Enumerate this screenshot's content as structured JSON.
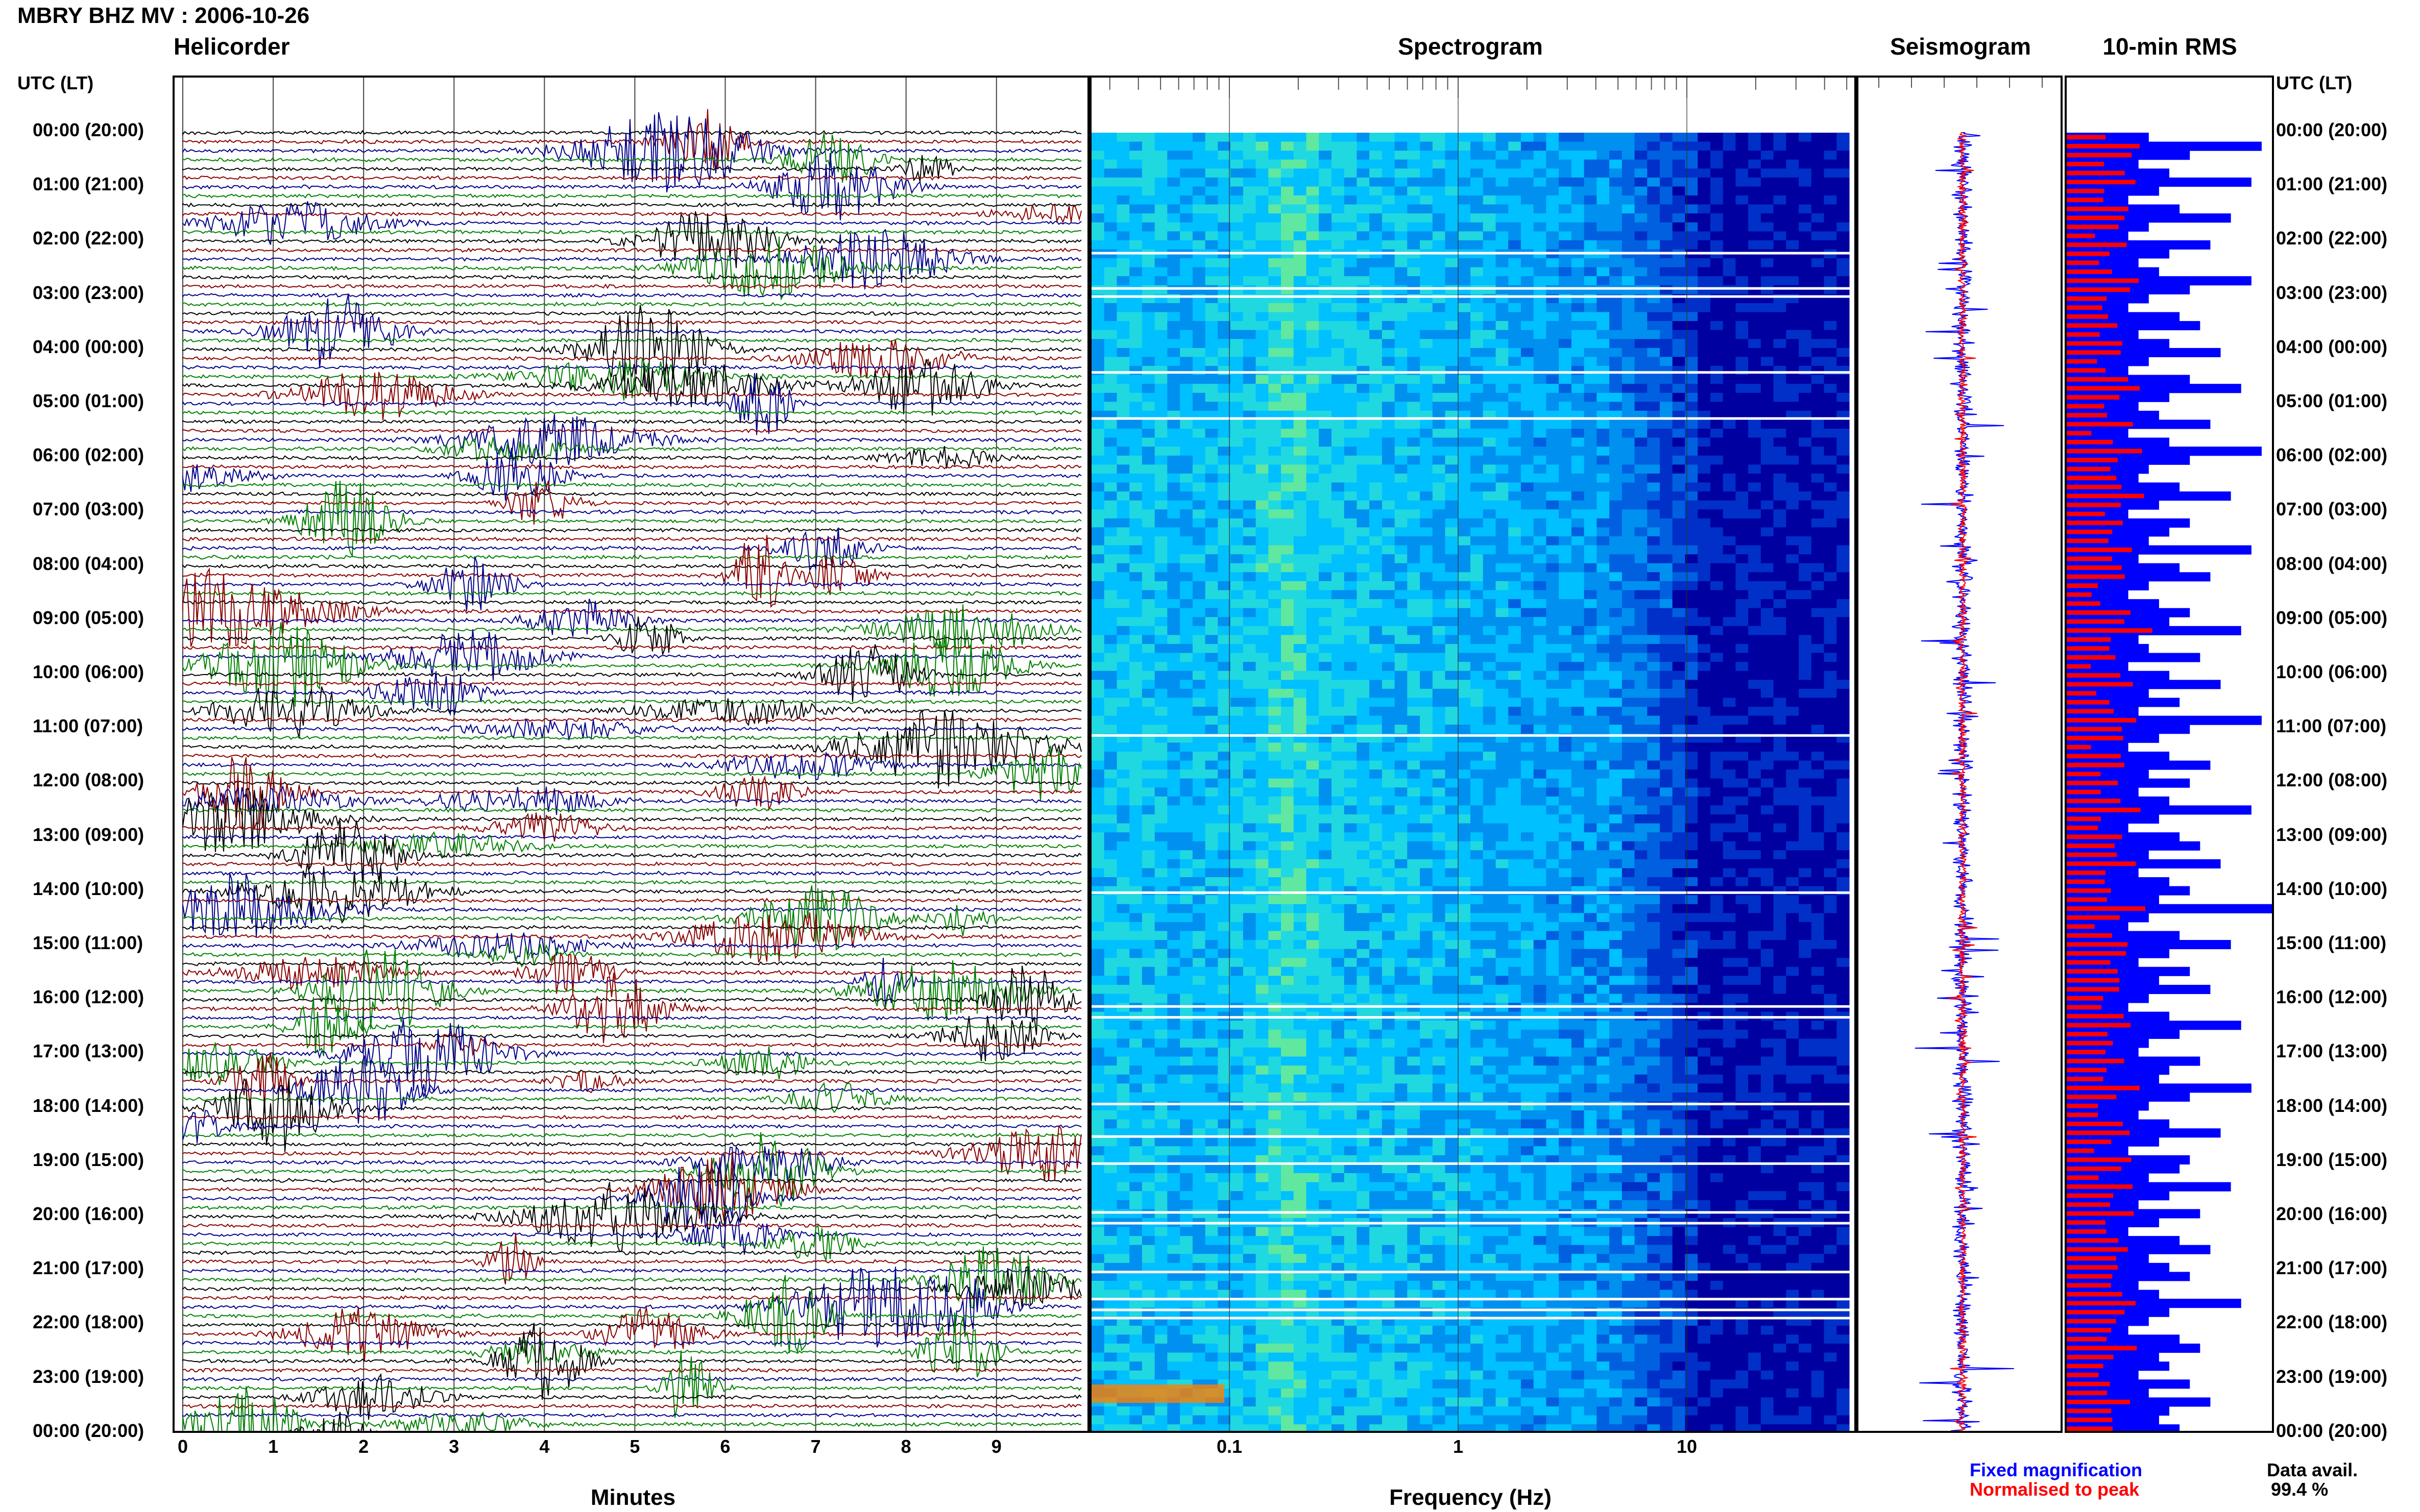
{
  "station_header": "MBRY BHZ MV : 2006-10-26",
  "panels": {
    "helicorder": "Helicorder",
    "spectrogram": "Spectrogram",
    "seismogram": "Seismogram",
    "rms": "10-min RMS"
  },
  "time_axis_title": "UTC (LT)",
  "time_labels": [
    "00:00 (20:00)",
    "01:00 (21:00)",
    "02:00 (22:00)",
    "03:00 (23:00)",
    "04:00 (00:00)",
    "05:00 (01:00)",
    "06:00 (02:00)",
    "07:00 (03:00)",
    "08:00 (04:00)",
    "09:00 (05:00)",
    "10:00 (06:00)",
    "11:00 (07:00)",
    "12:00 (08:00)",
    "13:00 (09:00)",
    "14:00 (10:00)",
    "15:00 (11:00)",
    "16:00 (12:00)",
    "17:00 (13:00)",
    "18:00 (14:00)",
    "19:00 (15:00)",
    "20:00 (16:00)",
    "21:00 (17:00)",
    "22:00 (18:00)",
    "23:00 (19:00)",
    "00:00 (20:00)"
  ],
  "helicorder_axis": {
    "label": "Minutes",
    "ticks": [
      "0",
      "1",
      "2",
      "3",
      "4",
      "5",
      "6",
      "7",
      "8",
      "9"
    ]
  },
  "spectrogram_axis": {
    "label": "Frequency (Hz)",
    "ticks": [
      "0.1",
      "1",
      "10"
    ]
  },
  "legend": {
    "fixed": "Fixed magnification",
    "normalised": "Normalised to peak",
    "fixed_color": "#0000ff",
    "normalised_color": "#ff0000"
  },
  "data_avail": {
    "label": "Data avail.",
    "value": "99.4 %"
  },
  "colors": {
    "trace_black": "#000000",
    "trace_red": "#8b0000",
    "trace_blue": "#00008b",
    "trace_green": "#008000",
    "spec_low": "#00008b",
    "spec_mid": "#00bfff",
    "spec_high": "#ffff00"
  },
  "chart_data": {
    "type": "area",
    "x_unit": "hour UTC",
    "rows": 145,
    "rms_fixed_relative": [
      0.4,
      0.95,
      0.6,
      0.35,
      0.5,
      0.9,
      0.45,
      0.3,
      0.55,
      0.8,
      0.4,
      0.3,
      0.7,
      0.5,
      0.35,
      0.45,
      0.9,
      0.6,
      0.4,
      0.3,
      0.55,
      0.65,
      0.35,
      0.5,
      0.75,
      0.4,
      0.3,
      0.6,
      0.85,
      0.5,
      0.35,
      0.45,
      0.7,
      0.3,
      0.5,
      0.95,
      0.6,
      0.4,
      0.35,
      0.55,
      0.8,
      0.45,
      0.3,
      0.6,
      0.5,
      0.4,
      0.9,
      0.35,
      0.55,
      0.7,
      0.4,
      0.3,
      0.45,
      0.6,
      0.5,
      0.85,
      0.35,
      0.4,
      0.65,
      0.3,
      0.5,
      0.75,
      0.4,
      0.55,
      0.35,
      0.95,
      0.6,
      0.45,
      0.3,
      0.5,
      0.7,
      0.4,
      0.6,
      0.35,
      0.5,
      0.9,
      0.45,
      0.3,
      0.55,
      0.65,
      0.4,
      0.75,
      0.35,
      0.5,
      0.6,
      0.45,
      1.0,
      0.4,
      0.3,
      0.55,
      0.8,
      0.5,
      0.35,
      0.6,
      0.45,
      0.7,
      0.4,
      0.3,
      0.5,
      0.85,
      0.55,
      0.4,
      0.35,
      0.65,
      0.5,
      0.45,
      0.9,
      0.6,
      0.4,
      0.35,
      0.5,
      0.75,
      0.45,
      0.3,
      0.6,
      0.55,
      0.4,
      0.8,
      0.5,
      0.35,
      0.65,
      0.45,
      0.3,
      0.55,
      0.7,
      0.4,
      0.5,
      0.6,
      0.35,
      0.45,
      0.85,
      0.5,
      0.4,
      0.3,
      0.55,
      0.65,
      0.45,
      0.5,
      0.35,
      0.6,
      0.4,
      0.7,
      0.5,
      0.45,
      0.55
    ]
  }
}
